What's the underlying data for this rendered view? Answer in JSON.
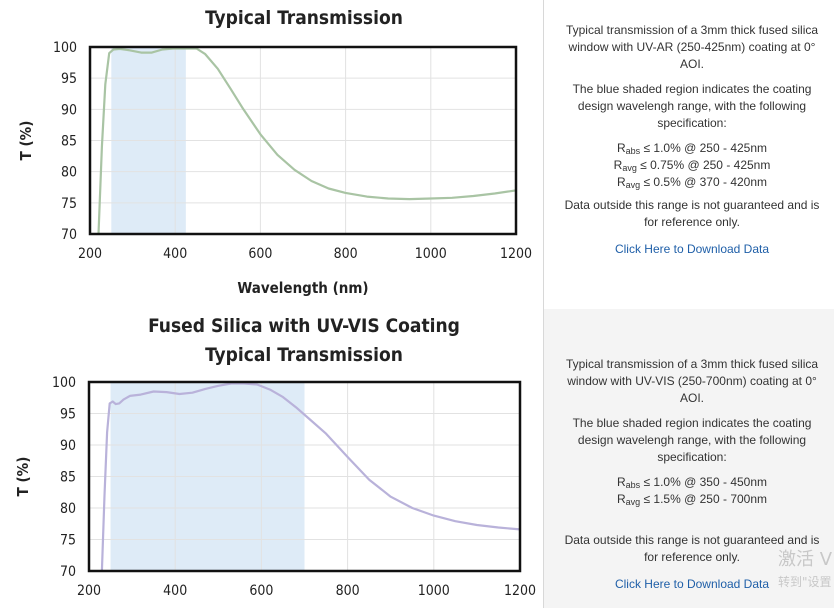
{
  "panels": [
    {
      "chart_data": {
        "type": "line",
        "title_lines": [
          "Typical Transmission"
        ],
        "xlabel": "Wavelength (nm)",
        "ylabel": "T (%)",
        "xlim": [
          200,
          1200
        ],
        "ylim": [
          70,
          100
        ],
        "x_ticks": [
          200,
          400,
          600,
          800,
          1000,
          1200
        ],
        "y_ticks": [
          100,
          95,
          90,
          85,
          80,
          75,
          70
        ],
        "shaded_range": [
          250,
          425
        ],
        "shade_color": "#deebf7",
        "line_color": "#a9c4a4",
        "grid": true,
        "series": [
          {
            "x": [
              220,
              228,
              236,
              245,
              255,
              270,
              290,
              320,
              345,
              370,
              395,
              415,
              430,
              450,
              470,
              500,
              530,
              560,
              600,
              640,
              680,
              720,
              760,
              800,
              850,
              900,
              950,
              1000,
              1050,
              1100,
              1150,
              1200
            ],
            "values": [
              70,
              84,
              94,
              99,
              99.6,
              99.7,
              99.5,
              99.1,
              99.1,
              99.6,
              100.2,
              100.6,
              100.5,
              100,
              98.9,
              96.5,
              93.3,
              90,
              86,
              82.7,
              80.3,
              78.5,
              77.3,
              76.6,
              76,
              75.7,
              75.6,
              75.7,
              75.8,
              76.1,
              76.5,
              77
            ]
          }
        ]
      },
      "info": {
        "description": "Typical transmission of a 3mm thick fused silica window with UV-AR (250-425nm) coating at 0° AOI.",
        "shade_note": "The blue shaded region indicates the coating design wavelengh range, with the following specification:",
        "specs": [
          {
            "symbol": "R",
            "sub": "abs",
            "text": " ≤ 1.0% @ 250 - 425nm"
          },
          {
            "symbol": "R",
            "sub": "avg",
            "text": " ≤ 0.75% @ 250 - 425nm"
          },
          {
            "symbol": "R",
            "sub": "avg",
            "text": " ≤ 0.5% @ 370 - 420nm"
          }
        ],
        "disclaimer": "Data outside this range is not guaranteed and is for reference only.",
        "download_label": "Click Here to Download Data"
      }
    },
    {
      "chart_data": {
        "type": "line",
        "title_lines": [
          "Fused Silica with UV-VIS Coating",
          "Typical Transmission"
        ],
        "xlabel": "",
        "ylabel": "T (%)",
        "xlim": [
          200,
          1200
        ],
        "ylim": [
          70,
          100
        ],
        "x_ticks": [
          200,
          400,
          600,
          800,
          1000,
          1200
        ],
        "y_ticks": [
          100,
          95,
          90,
          85,
          80,
          75,
          70
        ],
        "shaded_range": [
          250,
          700
        ],
        "shade_color": "#deebf7",
        "line_color": "#b9b2da",
        "grid": true,
        "series": [
          {
            "x": [
              230,
              236,
              242,
              248,
              255,
              262,
              270,
              280,
              295,
              320,
              350,
              380,
              410,
              440,
              470,
              500,
              530,
              560,
              590,
              620,
              650,
              680,
              710,
              750,
              800,
              850,
              900,
              950,
              1000,
              1050,
              1100,
              1150,
              1200
            ],
            "values": [
              70,
              82,
              92,
              96.6,
              96.9,
              96.5,
              96.6,
              97.2,
              97.8,
              98,
              98.5,
              98.4,
              98.1,
              98.3,
              98.9,
              99.4,
              99.8,
              99.9,
              99.6,
              98.8,
              97.6,
              96,
              94.2,
              91.8,
              88.1,
              84.5,
              81.8,
              80,
              78.8,
              77.9,
              77.3,
              76.9,
              76.6
            ]
          }
        ]
      },
      "info": {
        "description": "Typical transmission of a 3mm thick fused silica window with UV-VIS (250-700nm) coating at 0° AOI.",
        "shade_note": "The blue shaded region indicates the coating design wavelengh range, with the following specification:",
        "specs": [
          {
            "symbol": "R",
            "sub": "abs",
            "text": " ≤ 1.0% @ 350 - 450nm"
          },
          {
            "symbol": "R",
            "sub": "avg",
            "text": " ≤ 1.5% @ 250 - 700nm"
          }
        ],
        "disclaimer": "Data outside this range is not guaranteed and is for reference only.",
        "download_label": "Click Here to Download Data"
      }
    }
  ],
  "watermark": {
    "line1": "激活 V",
    "line2": "转到\"设置"
  }
}
